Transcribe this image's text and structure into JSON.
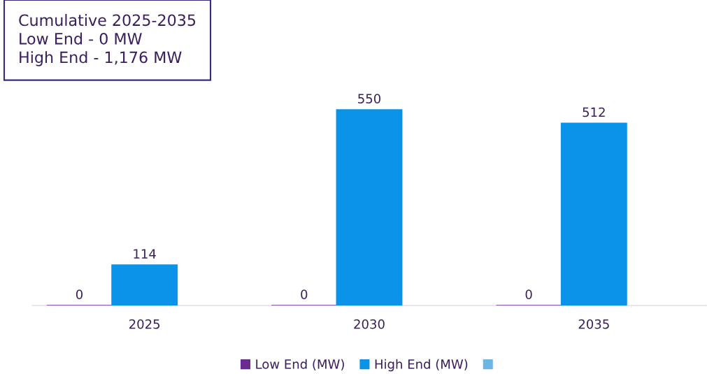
{
  "chart_data": {
    "type": "bar",
    "categories": [
      "2025",
      "2030",
      "2035"
    ],
    "series": [
      {
        "name": "Low End (MW)",
        "color": "#6a2c91",
        "values": [
          0,
          0,
          0
        ]
      },
      {
        "name": "High End (MW)",
        "color": "#0a93e8",
        "values": [
          114,
          550,
          512
        ]
      },
      {
        "color": "#6cb6e6",
        "values": [
          null,
          null,
          null
        ]
      }
    ],
    "data_labels": true,
    "grid": false,
    "legend": "bottom",
    "annotations": [
      "Cumulative 2025-2035\nLow End - 0 MW\nHigh End - 1,176 MW"
    ]
  }
}
